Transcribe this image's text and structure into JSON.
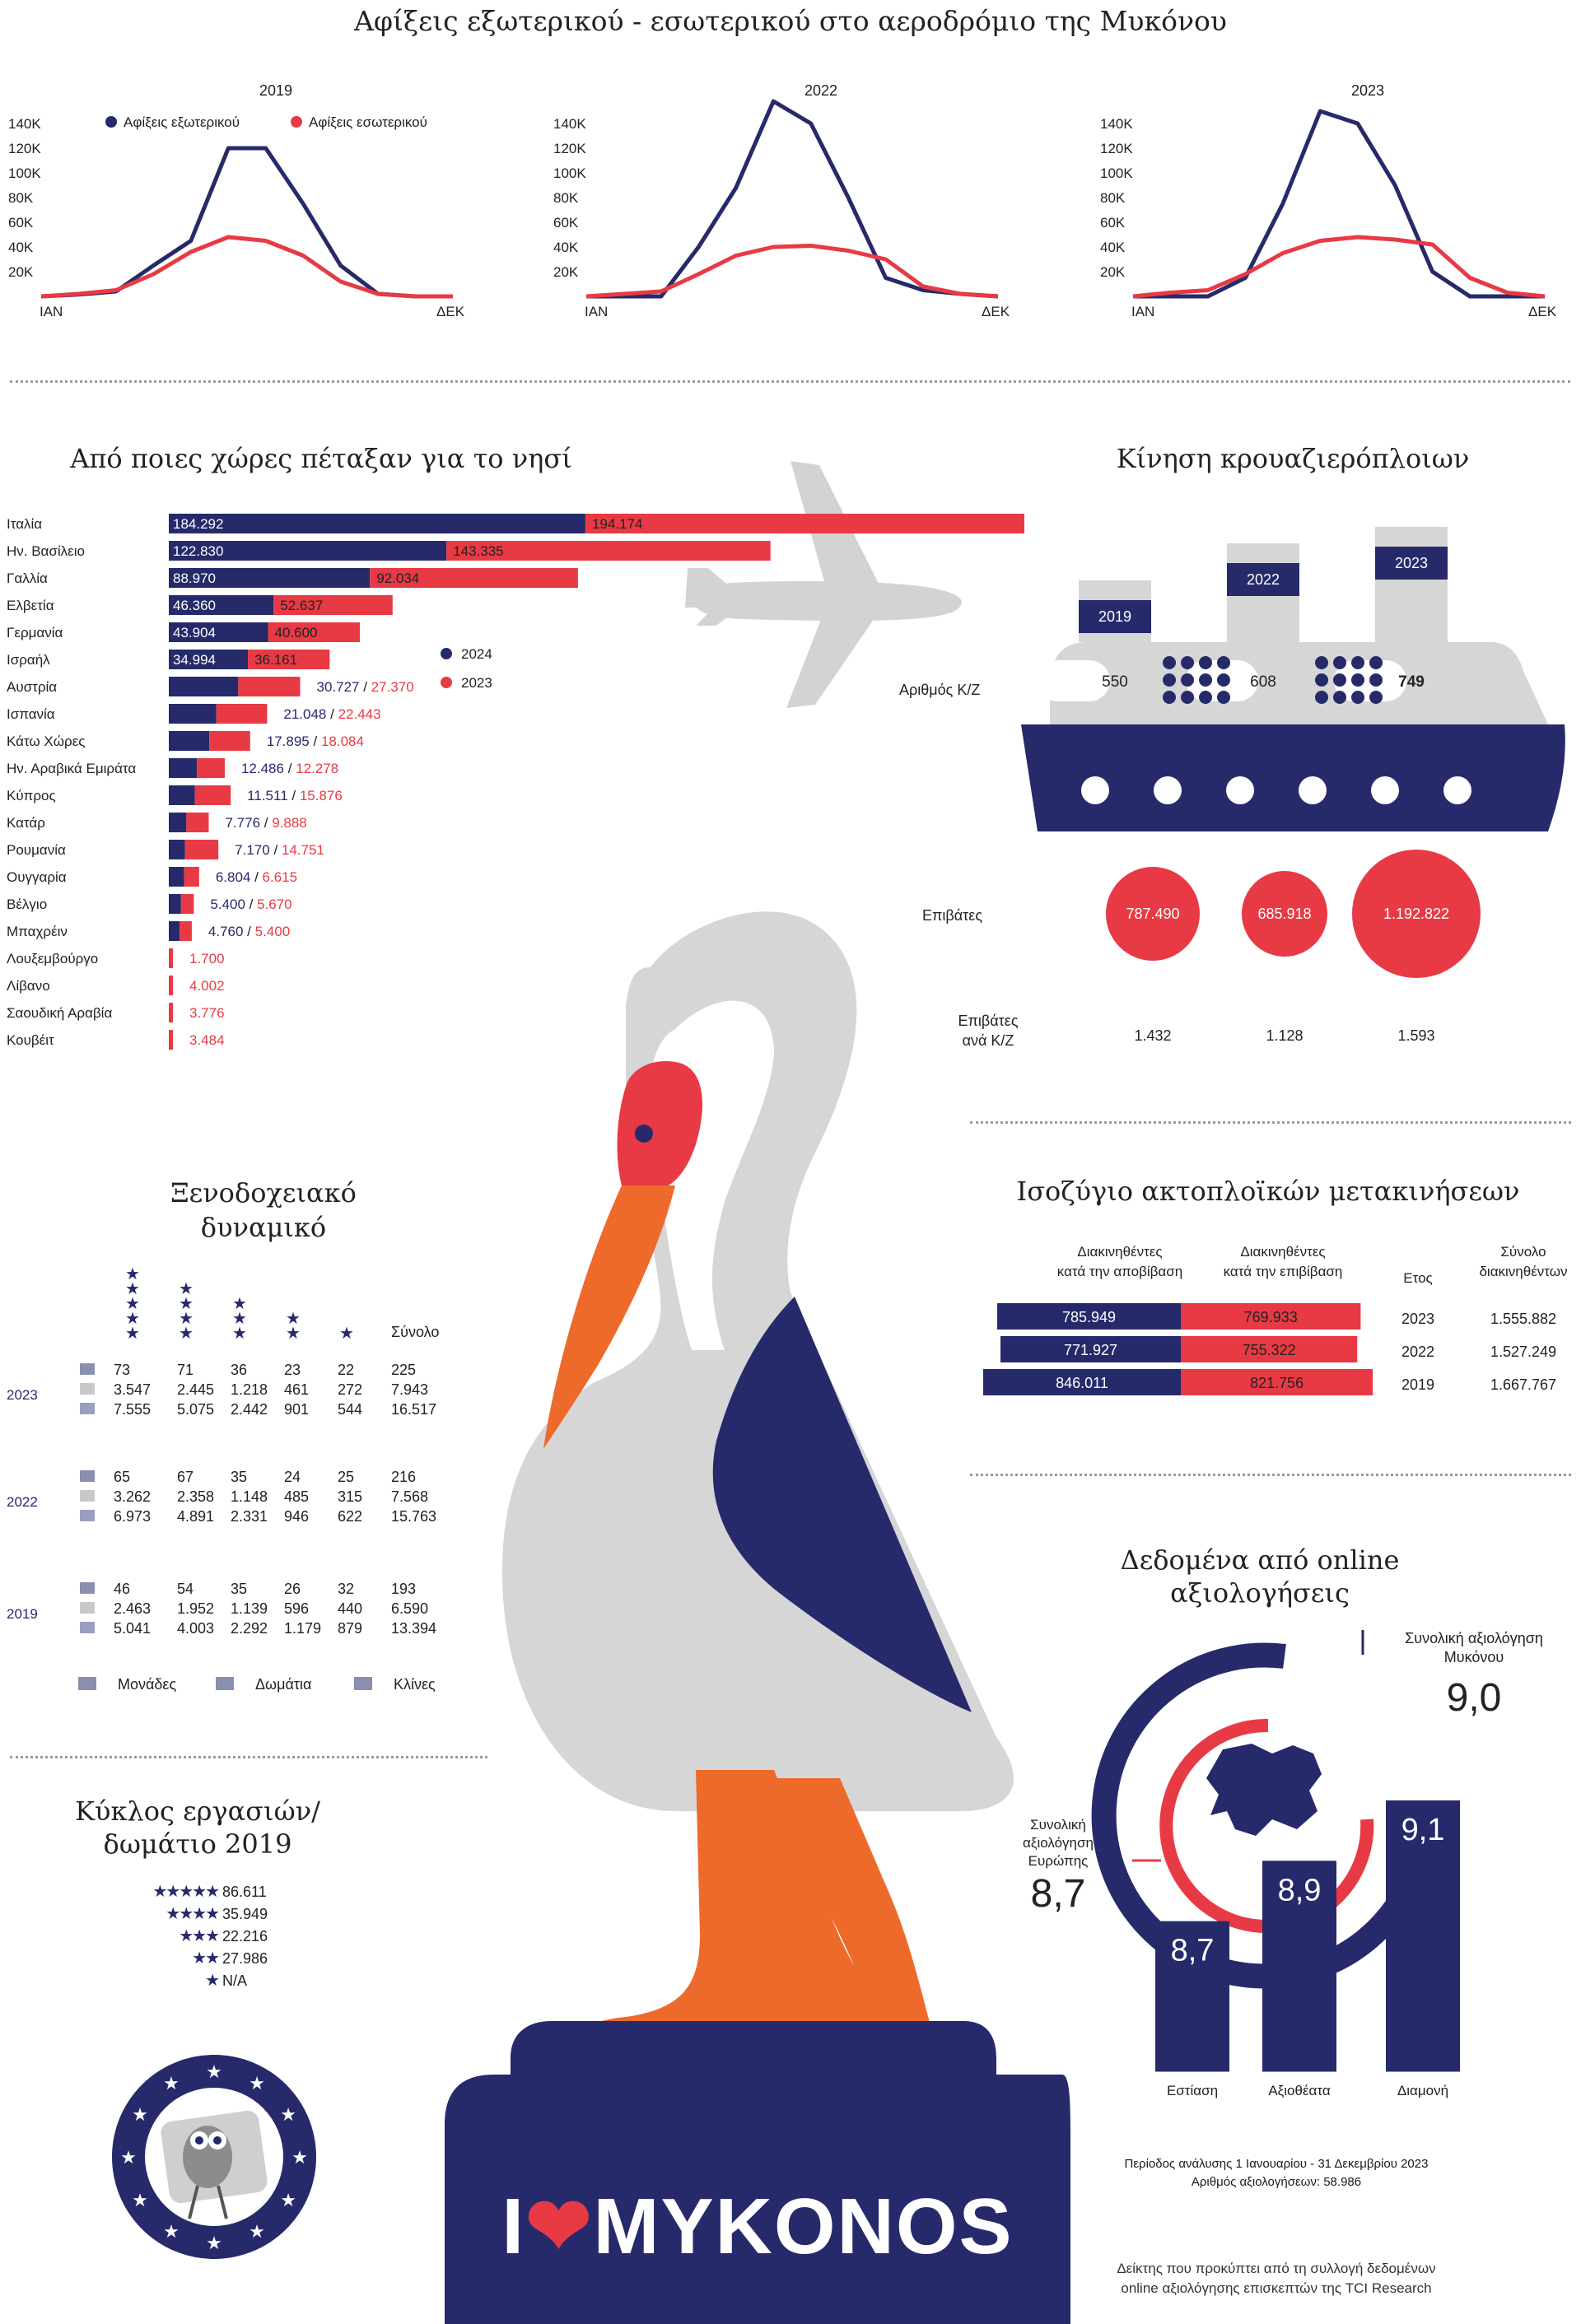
{
  "colors": {
    "navy": "#262a6b",
    "red": "#e83a44",
    "orange": "#ee6a2a",
    "gray": "#d6d6d6",
    "lightgray": "#e8e8e8"
  },
  "page_title": "Αφίξεις εξωτερικού - εσωτερικού στο αεροδρόμιο της Μυκόνου",
  "arrivals": {
    "legend_international": "Αφίξεις εξωτερικού",
    "legend_domestic": "Αφίξεις εσωτερικού",
    "start_label": "ΙΑΝ",
    "end_label": "ΔΕΚ",
    "y_ticks": [
      "20K",
      "40K",
      "60K",
      "80K",
      "100K",
      "120K",
      "140K"
    ]
  },
  "chart_data": [
    {
      "type": "line",
      "title": "2019",
      "x": [
        1,
        2,
        3,
        4,
        5,
        6,
        7,
        8,
        9,
        10,
        11,
        12
      ],
      "ylim": [
        0,
        140000
      ],
      "series": [
        {
          "name": "Αφίξεις εξωτερικού",
          "values": [
            0,
            1500,
            4000,
            25000,
            45000,
            120000,
            120000,
            75000,
            25000,
            2000,
            0,
            0
          ]
        },
        {
          "name": "Αφίξεις εσωτερικού",
          "values": [
            0,
            2000,
            5000,
            18000,
            36000,
            48000,
            45000,
            33000,
            12000,
            2000,
            0,
            0
          ]
        }
      ]
    },
    {
      "type": "line",
      "title": "2022",
      "x": [
        1,
        2,
        3,
        4,
        5,
        6,
        7,
        8,
        9,
        10,
        11,
        12
      ],
      "ylim": [
        0,
        140000
      ],
      "series": [
        {
          "name": "Αφίξεις εξωτερικού",
          "values": [
            0,
            0,
            0,
            40000,
            88000,
            158000,
            140000,
            80000,
            15000,
            5000,
            2000,
            0
          ]
        },
        {
          "name": "Αφίξεις εσωτερικού",
          "values": [
            0,
            2000,
            4000,
            18000,
            33000,
            40000,
            41000,
            37000,
            30000,
            8000,
            2000,
            0
          ]
        }
      ]
    },
    {
      "type": "line",
      "title": "2023",
      "x": [
        1,
        2,
        3,
        4,
        5,
        6,
        7,
        8,
        9,
        10,
        11,
        12
      ],
      "ylim": [
        0,
        140000
      ],
      "series": [
        {
          "name": "Αφίξεις εξωτερικού",
          "values": [
            0,
            0,
            0,
            15000,
            75000,
            150000,
            140000,
            90000,
            20000,
            0,
            0,
            0
          ]
        },
        {
          "name": "Αφίξεις εσωτερικού",
          "values": [
            0,
            3000,
            5000,
            18000,
            35000,
            45000,
            48000,
            46000,
            42000,
            15000,
            3000,
            0
          ]
        }
      ]
    },
    {
      "type": "bar",
      "title": "Από ποιες χώρες πέταξαν για το νησί",
      "categories": [
        "Ιταλία",
        "Ην. Βασίλειο",
        "Γαλλία",
        "Ελβετία",
        "Γερμανία",
        "Ισραήλ",
        "Αυστρία",
        "Ισπανία",
        "Κάτω Χώρες",
        "Ην. Αραβικά Εμιράτα",
        "Κύπρος",
        "Κατάρ",
        "Ρουμανία",
        "Ουγγαρία",
        "Βέλγιο",
        "Μπαχρέιν",
        "Λουξεμβούργο",
        "Λίβανο",
        "Σαουδική Αραβία",
        "Κουβέιτ"
      ],
      "series": [
        {
          "name": "2024",
          "values": [
            184292,
            122830,
            88970,
            46360,
            43904,
            34994,
            30727,
            21048,
            17895,
            12486,
            11511,
            7776,
            7170,
            6804,
            5400,
            4760,
            null,
            null,
            null,
            null
          ],
          "labels": [
            "184.292",
            "122.830",
            "88.970",
            "46.360",
            "43.904",
            "34.994",
            "30.727",
            "21.048",
            "17.895",
            "12.486",
            "11.511",
            "7.776",
            "7.170",
            "6.804",
            "5.400",
            "4.760",
            "",
            "",
            "",
            ""
          ]
        },
        {
          "name": "2023",
          "values": [
            194174,
            143335,
            92034,
            52637,
            40600,
            36161,
            27370,
            22443,
            18084,
            12278,
            15876,
            9888,
            14751,
            6615,
            5670,
            5400,
            1700,
            4002,
            3776,
            3484
          ],
          "labels": [
            "194.174",
            "143.335",
            "92.034",
            "52.637",
            "40.600",
            "36.161",
            "27.370",
            "22.443",
            "18.084",
            "12.278",
            "15.876",
            "9.888",
            "14.751",
            "6.615",
            "5.670",
            "5.400",
            "1.700",
            "4.002",
            "3.776",
            "3.484"
          ]
        }
      ]
    }
  ],
  "countries_title": "Από ποιες χώρες πέταξαν για το νησί",
  "country_legend": [
    "2024",
    "2023"
  ],
  "cruise": {
    "title": "Κίνηση κρουαζιερόπλοιων",
    "years": [
      "2019",
      "2022",
      "2023"
    ],
    "ships_label": "Αριθμός Κ/Ζ",
    "ships": [
      "550",
      "608",
      "749"
    ],
    "passengers_label": "Επιβάτες",
    "passengers": [
      "787.490",
      "685.918",
      "1.192.822"
    ],
    "per_ship_label": "Επιβάτες ανά Κ/Ζ",
    "per_ship": [
      "1.432",
      "1.128",
      "1.593"
    ]
  },
  "hotels": {
    "title": "Ξενοδοχειακό δυναμικό",
    "total_label": "Σύνολο",
    "blocks": [
      {
        "year": "2023",
        "rows": [
          [
            "73",
            "71",
            "36",
            "23",
            "22",
            "225"
          ],
          [
            "3.547",
            "2.445",
            "1.218",
            "461",
            "272",
            "7.943"
          ],
          [
            "7.555",
            "5.075",
            "2.442",
            "901",
            "544",
            "16.517"
          ]
        ]
      },
      {
        "year": "2022",
        "rows": [
          [
            "65",
            "67",
            "35",
            "24",
            "25",
            "216"
          ],
          [
            "3.262",
            "2.358",
            "1.148",
            "485",
            "315",
            "7.568"
          ],
          [
            "6.973",
            "4.891",
            "2.331",
            "946",
            "622",
            "15.763"
          ]
        ]
      },
      {
        "year": "2019",
        "rows": [
          [
            "46",
            "54",
            "35",
            "26",
            "32",
            "193"
          ],
          [
            "2.463",
            "1.952",
            "1.139",
            "596",
            "440",
            "6.590"
          ],
          [
            "5.041",
            "4.003",
            "2.292",
            "1.179",
            "879",
            "13.394"
          ]
        ]
      }
    ],
    "legend": [
      "Μονάδες",
      "Δωμάτια",
      "Κλίνες"
    ]
  },
  "revenue": {
    "title": "Κύκλος εργασιών/δωμάτιο 2019",
    "rows": [
      {
        "stars": "★★★★★",
        "value": "86.611"
      },
      {
        "stars": "★★★★",
        "value": "35.949"
      },
      {
        "stars": "★★★",
        "value": "22.216"
      },
      {
        "stars": "★★",
        "value": "27.986"
      },
      {
        "stars": "★",
        "value": "N/A"
      }
    ]
  },
  "ferry": {
    "title": "Ισοζύγιο ακτοπλοϊκών μετακινήσεων",
    "head_disembark": "Διακινηθέντες κατά την αποβίβαση",
    "head_embark": "Διακινηθέντες κατά την επιβίβαση",
    "head_year": "Ετος",
    "head_total": "Σύνολο διακινηθέντων",
    "rows": [
      {
        "disembark": "785.949",
        "embark": "769.933",
        "year": "2023",
        "total": "1.555.882",
        "disembark_value": 785949,
        "embark_value": 769933
      },
      {
        "disembark": "771.927",
        "embark": "755.322",
        "year": "2022",
        "total": "1.527.249",
        "disembark_value": 771927,
        "embark_value": 755322
      },
      {
        "disembark": "846.011",
        "embark": "821.756",
        "year": "2019",
        "total": "1.667.767",
        "disembark_value": 846011,
        "embark_value": 821756
      }
    ]
  },
  "reviews": {
    "title": "Δεδομένα από online αξιολογήσεις",
    "mykonos_label": "Συνολική αξιολόγηση Μυκόνου",
    "mykonos_value": "9,0",
    "europe_label": "Συνολική αξιολόγηση Ευρώπης",
    "europe_value": "8,7",
    "bars": [
      {
        "label": "Εστίαση",
        "value": "8,7",
        "num": 8.7
      },
      {
        "label": "Αξιοθέατα",
        "value": "8,9",
        "num": 8.9
      },
      {
        "label": "Διαμονή",
        "value": "9,1",
        "num": 9.1
      }
    ],
    "period": "Περίοδος ανάλυσης 1 Ιανουαρίου - 31 Δεκεμβρίου 2023",
    "count": "Αριθμός αξιολογήσεων: 58.986",
    "footnote_1": "Δείκτης που προκύπτει από τη συλλογή δεδομένων",
    "footnote_2": "online αξιολόγησης επισκεπτών της TCI Research"
  },
  "logo": {
    "i": "I",
    "heart": "❤",
    "word": "MYKONOS"
  }
}
